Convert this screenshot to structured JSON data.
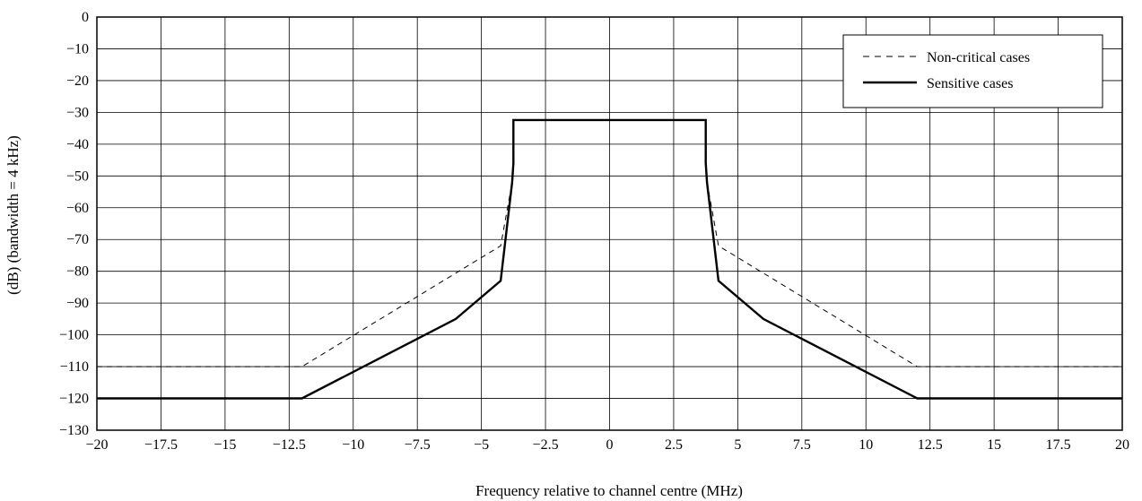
{
  "chart_data": {
    "type": "line",
    "title": "",
    "xlabel": "Frequency relative to channel centre (MHz)",
    "ylabel": "(dB) (bandwidth = 4 kHz)",
    "xlim": [
      -20,
      20
    ],
    "ylim": [
      -130,
      0
    ],
    "x_ticks": [
      -20,
      -17.5,
      -15,
      -12.5,
      -10,
      -7.5,
      -5,
      -2.5,
      0,
      2.5,
      5,
      7.5,
      10,
      12.5,
      15,
      17.5,
      20
    ],
    "x_tick_labels": [
      "−20",
      "−17.5",
      "−15",
      "−12.5",
      "−10",
      "−7.5",
      "−5",
      "−2.5",
      "0",
      "2.5",
      "5",
      "7.5",
      "10",
      "12.5",
      "15",
      "17.5",
      "20"
    ],
    "y_ticks": [
      0,
      -10,
      -20,
      -30,
      -40,
      -50,
      -60,
      -70,
      -80,
      -90,
      -100,
      -110,
      -120,
      -130
    ],
    "y_tick_labels": [
      "0",
      "−10",
      "−20",
      "−30",
      "−40",
      "−50",
      "−60",
      "−70",
      "−80",
      "−90",
      "−100",
      "−110",
      "−120",
      "−130"
    ],
    "grid": true,
    "legend_position": "top-right",
    "series": [
      {
        "name": "Non-critical cases",
        "style": "dashed",
        "color": "#000000",
        "x": [
          -20,
          -12,
          -4.25,
          -3.8,
          -3.75,
          -3.75,
          3.75,
          3.75,
          3.8,
          4.25,
          12,
          20
        ],
        "y": [
          -110,
          -110,
          -72,
          -52,
          -46,
          -32.4,
          -32.4,
          -46,
          -52,
          -72,
          -110,
          -110
        ]
      },
      {
        "name": "Sensitive cases",
        "style": "solid",
        "color": "#000000",
        "x": [
          -20,
          -12,
          -6,
          -4.25,
          -3.8,
          -3.75,
          -3.75,
          3.75,
          3.75,
          3.8,
          4.25,
          6,
          12,
          20
        ],
        "y": [
          -120,
          -120,
          -95,
          -83,
          -52,
          -46,
          -32.4,
          -32.4,
          -46,
          -52,
          -83,
          -95,
          -120,
          -120
        ]
      }
    ]
  }
}
